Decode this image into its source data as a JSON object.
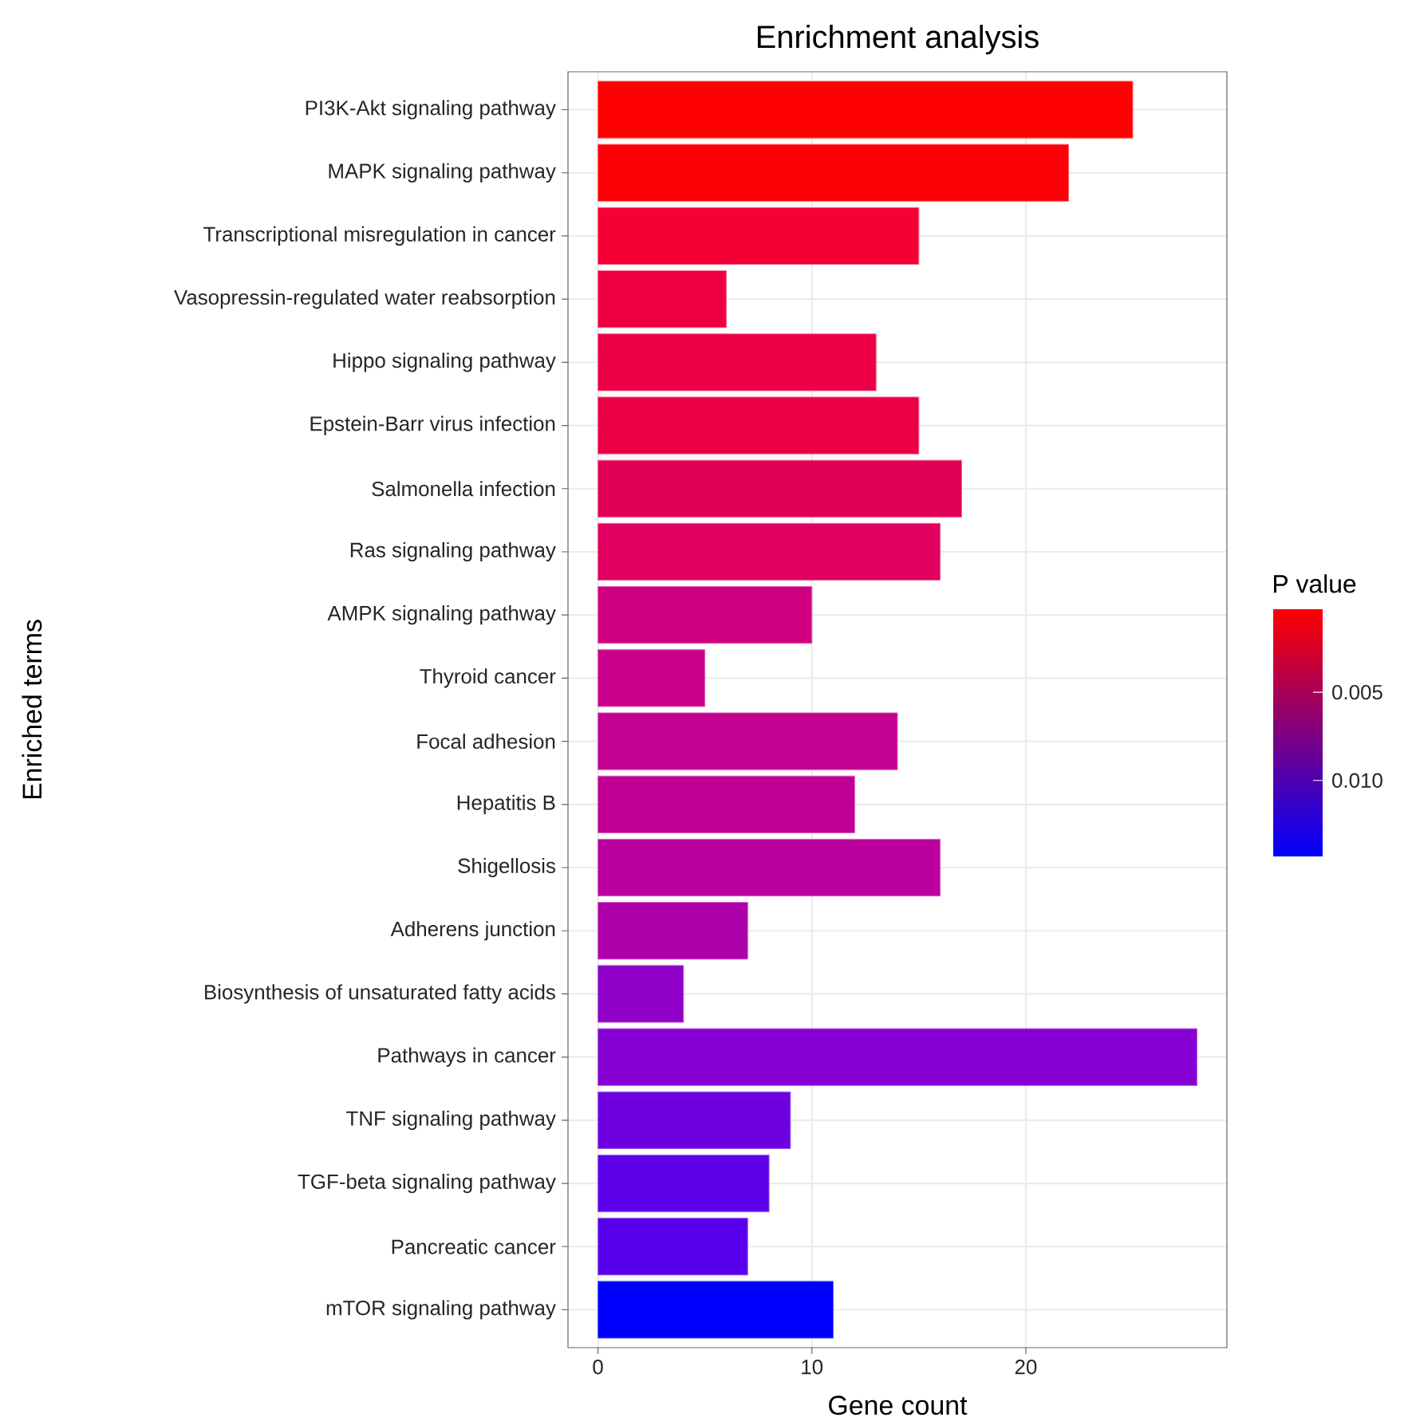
{
  "chart_data": {
    "type": "bar",
    "orientation": "horizontal",
    "title": "Enrichment analysis",
    "xlabel": "Gene count",
    "ylabel": "Enriched terms",
    "clabel": "P value",
    "categories": [
      "PI3K-Akt signaling pathway",
      "MAPK signaling pathway",
      "Transcriptional misregulation in cancer",
      "Vasopressin-regulated water reabsorption",
      "Hippo signaling pathway",
      "Epstein-Barr virus infection",
      "Salmonella infection",
      "Ras signaling pathway",
      "AMPK signaling pathway",
      "Thyroid cancer",
      "Focal adhesion",
      "Hepatitis B",
      "Shigellosis",
      "Adherens junction",
      "Biosynthesis of unsaturated fatty acids",
      "Pathways in cancer",
      "TNF signaling pathway",
      "TGF-beta signaling pathway",
      "Pancreatic cancer",
      "mTOR signaling pathway"
    ],
    "values": [
      25,
      22,
      15,
      6,
      13,
      15,
      17,
      16,
      10,
      5,
      14,
      12,
      16,
      7,
      4,
      28,
      9,
      8,
      7,
      11
    ],
    "colors": [
      "#ff0000",
      "#fd0008",
      "#f40035",
      "#ee0040",
      "#ec0045",
      "#eb0045",
      "#e20055",
      "#df0060",
      "#cf0080",
      "#c8008a",
      "#c3008f",
      "#c00095",
      "#bb009d",
      "#ae00aa",
      "#8f00c8",
      "#8600d3",
      "#6e00e0",
      "#5e00ea",
      "#5800ec",
      "#0000ff"
    ],
    "xlim": [
      -1.4,
      29.4
    ],
    "xticks": [
      0,
      10,
      20
    ],
    "grid": true,
    "clim": [
      0.0143,
      0.0003
    ],
    "cticks": [
      {
        "value": 0.005,
        "label": "0.005"
      },
      {
        "value": 0.01,
        "label": "0.010"
      }
    ]
  }
}
